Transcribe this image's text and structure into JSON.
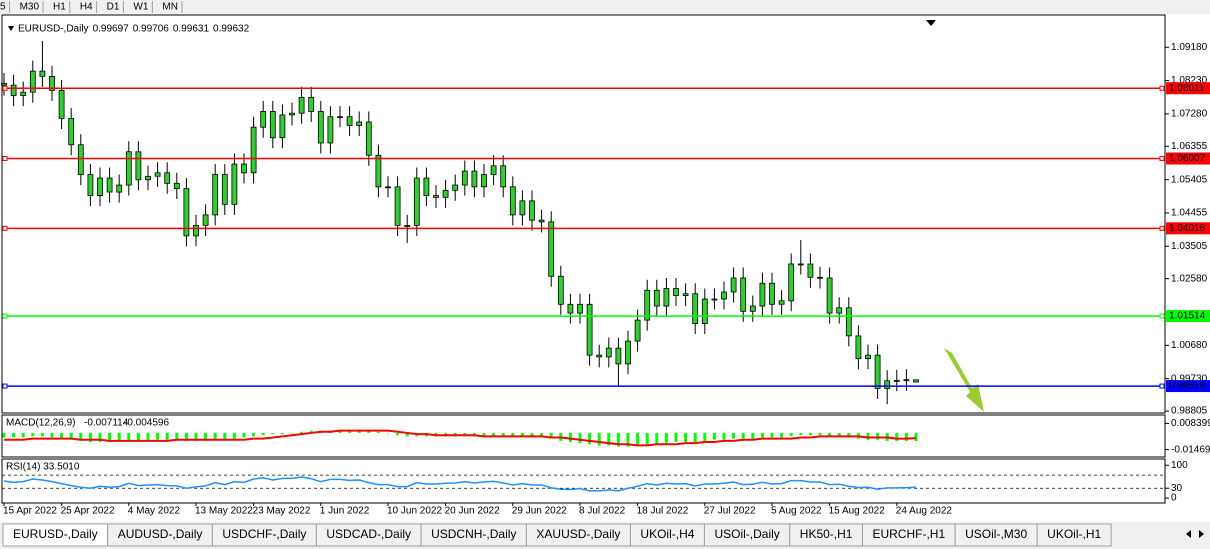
{
  "toolbar": [
    "5",
    "M30",
    "H1",
    "H4",
    "D1",
    "W1",
    "MN"
  ],
  "tabs": [
    "EURUSD-,Daily",
    "AUDUSD-,Daily",
    "USDCHF-,Daily",
    "USDCAD-,Daily",
    "USDCNH-,Daily",
    "XAUUSD-,Daily",
    "UKOil-,H4",
    "USOil-,Daily",
    "HK50-,H1",
    "EURCHF-,H1",
    "USOil-,M30",
    "UKOil-,H1"
  ],
  "chart_data": [
    {
      "type": "candlestick",
      "title": "EURUSD-,Daily",
      "categories": [
        "15 Apr 2022",
        null,
        null,
        null,
        null,
        null,
        "25 Apr 2022",
        null,
        null,
        null,
        null,
        null,
        null,
        "4 May 2022",
        null,
        null,
        null,
        null,
        null,
        null,
        "13 May 2022",
        null,
        null,
        null,
        null,
        null,
        "23 May 2022",
        null,
        null,
        null,
        null,
        null,
        null,
        "1 Jun 2022",
        null,
        null,
        null,
        null,
        null,
        null,
        "10 Jun 2022",
        null,
        null,
        null,
        null,
        null,
        "20 Jun 2022",
        null,
        null,
        null,
        null,
        null,
        null,
        "29 Jun 2022",
        null,
        null,
        null,
        null,
        null,
        null,
        "8 Jul 2022",
        null,
        null,
        null,
        null,
        null,
        "18 Jul 2022",
        null,
        null,
        null,
        null,
        null,
        null,
        "27 Jul 2022",
        null,
        null,
        null,
        null,
        null,
        null,
        "5 Aug 2022",
        null,
        null,
        null,
        null,
        null,
        "15 Aug 2022",
        null,
        null,
        null,
        null,
        null,
        null,
        "24 Aug 2022",
        null,
        null
      ],
      "open": [
        1.0815,
        1.081,
        1.078,
        1.079,
        1.085,
        1.0835,
        1.0795,
        1.0715,
        1.064,
        1.0555,
        1.0495,
        1.0545,
        1.0505,
        1.0525,
        1.062,
        1.054,
        1.055,
        1.056,
        1.053,
        1.0515,
        1.038,
        1.041,
        1.044,
        1.0555,
        1.047,
        1.0585,
        1.056,
        1.069,
        1.0735,
        1.066,
        1.0725,
        1.073,
        1.0775,
        1.0735,
        1.0645,
        1.072,
        1.072,
        1.0695,
        1.0705,
        1.061,
        1.052,
        1.052,
        1.041,
        1.041,
        1.0545,
        1.0495,
        1.049,
        1.051,
        1.0525,
        1.0565,
        1.052,
        1.0555,
        1.058,
        1.052,
        1.044,
        1.048,
        1.0425,
        1.042,
        1.0265,
        1.0185,
        1.016,
        1.0185,
        1.004,
        1.0035,
        1.006,
        1.0015,
        1.008,
        1.014,
        1.0225,
        1.018,
        1.023,
        1.021,
        1.0215,
        1.013,
        1.02,
        1.02,
        1.022,
        1.026,
        1.0165,
        1.018,
        1.0245,
        1.0185,
        1.0195,
        1.03,
        1.03,
        1.0262,
        1.026,
        1.016,
        1.0175,
        1.0095,
        1.003,
        1.004,
        0.9945,
        0.9967,
        0.9968,
        0.99697
      ],
      "high": [
        1.0845,
        1.084,
        1.082,
        1.088,
        1.0936,
        1.0865,
        1.0825,
        1.0745,
        1.067,
        1.0585,
        1.0575,
        1.0575,
        1.0555,
        1.065,
        1.065,
        1.058,
        1.059,
        1.059,
        1.056,
        1.0545,
        1.044,
        1.047,
        1.0585,
        1.0585,
        1.0615,
        1.0615,
        1.072,
        1.0765,
        1.0765,
        1.0755,
        1.076,
        1.0805,
        1.0805,
        1.0765,
        1.075,
        1.075,
        1.075,
        1.0735,
        1.0735,
        1.064,
        1.055,
        1.055,
        1.044,
        1.0575,
        1.0575,
        1.0525,
        1.054,
        1.0555,
        1.0595,
        1.0595,
        1.0585,
        1.061,
        1.061,
        1.055,
        1.051,
        1.051,
        1.0455,
        1.045,
        1.0295,
        1.0215,
        1.0215,
        1.0215,
        1.007,
        1.009,
        1.009,
        1.011,
        1.017,
        1.0255,
        1.0255,
        1.026,
        1.026,
        1.0245,
        1.0245,
        1.023,
        1.023,
        1.025,
        1.029,
        1.029,
        1.021,
        1.0275,
        1.0275,
        1.0225,
        1.033,
        1.0368,
        1.033,
        1.0292,
        1.029,
        1.0205,
        1.0205,
        1.0125,
        1.007,
        1.007,
        0.9997,
        0.9998,
        1.0,
        0.99706
      ],
      "low": [
        1.078,
        1.075,
        1.075,
        1.076,
        1.0805,
        1.0765,
        1.0685,
        1.061,
        1.0525,
        1.0465,
        1.0465,
        1.0475,
        1.0475,
        1.0495,
        1.051,
        1.051,
        1.052,
        1.05,
        1.0485,
        1.035,
        1.035,
        1.038,
        1.041,
        1.044,
        1.044,
        1.053,
        1.053,
        1.066,
        1.063,
        1.063,
        1.0695,
        1.07,
        1.0705,
        1.0615,
        1.0615,
        1.069,
        1.0665,
        1.0665,
        1.058,
        1.049,
        1.049,
        1.038,
        1.036,
        1.038,
        1.0465,
        1.046,
        1.046,
        1.048,
        1.0495,
        1.049,
        1.049,
        1.0525,
        1.049,
        1.041,
        1.041,
        1.0395,
        1.039,
        1.0235,
        1.0155,
        1.013,
        1.013,
        1.001,
        1.0005,
        1.0005,
        0.9952,
        0.9985,
        1.005,
        1.011,
        1.015,
        1.015,
        1.018,
        1.018,
        1.01,
        1.01,
        1.017,
        1.017,
        1.019,
        1.0135,
        1.0135,
        1.015,
        1.0155,
        1.0155,
        1.0165,
        1.027,
        1.0232,
        1.023,
        1.013,
        1.013,
        1.0065,
        1.0,
        1.0,
        0.9915,
        0.99,
        0.9937,
        0.9938,
        0.99631
      ],
      "close": [
        1.081,
        1.078,
        1.079,
        1.085,
        1.0835,
        1.0795,
        1.0715,
        1.064,
        1.0555,
        1.0495,
        1.0545,
        1.0505,
        1.0525,
        1.062,
        1.054,
        1.055,
        1.056,
        1.053,
        1.0515,
        1.038,
        1.041,
        1.044,
        1.0555,
        1.047,
        1.0585,
        1.056,
        1.069,
        1.0735,
        1.066,
        1.0725,
        1.073,
        1.0775,
        1.0735,
        1.0645,
        1.072,
        1.072,
        1.0695,
        1.0705,
        1.061,
        1.052,
        1.052,
        1.041,
        1.041,
        1.0545,
        1.0495,
        1.049,
        1.051,
        1.0525,
        1.0565,
        1.052,
        1.0555,
        1.058,
        1.052,
        1.044,
        1.048,
        1.0425,
        1.042,
        1.0265,
        1.0185,
        1.016,
        1.0185,
        1.004,
        1.0035,
        1.006,
        1.0015,
        1.008,
        1.014,
        1.0225,
        1.018,
        1.023,
        1.021,
        1.0215,
        1.013,
        1.02,
        1.02,
        1.022,
        1.026,
        1.0165,
        1.018,
        1.0245,
        1.0185,
        1.0195,
        1.03,
        1.03,
        1.0262,
        1.026,
        1.016,
        1.0175,
        1.0095,
        1.003,
        1.004,
        0.9945,
        0.9967,
        0.9968,
        0.997,
        0.99632
      ],
      "up_color": "#32cd32",
      "down_color": "#32cd32",
      "ylim": [
        0.9875,
        1.101
      ],
      "yticks": [
        {
          "value": 1.0918,
          "label": "1.09180"
        },
        {
          "value": 1.0823,
          "label": "1.08230"
        },
        {
          "value": 1.0728,
          "label": "1.07280"
        },
        1.06355,
        1.05405,
        1.04455,
        1.03505,
        {
          "value": 1.0258,
          "label": "1.02580"
        },
        {
          "value": 1.0068,
          "label": "1.00680"
        },
        {
          "value": 0.9973,
          "label": "0.99730"
        },
        0.98805
      ],
      "levels": [
        {
          "value": 1.08011,
          "color": "#ff0000"
        },
        {
          "value": 1.06007,
          "color": "#ff0000"
        },
        {
          "value": 1.04016,
          "color": "#ff0000"
        },
        {
          "value": 1.01514,
          "color": "#00ff00"
        },
        {
          "value": 0.99518,
          "color": "#0000ff"
        }
      ],
      "grid": false
    },
    {
      "type": "macd",
      "title": "MACD(12,26,9)",
      "values": [
        -0.004,
        -0.004,
        -0.004,
        -0.003,
        -0.003,
        -0.004,
        -0.005,
        -0.006,
        -0.007,
        -0.008,
        -0.008,
        -0.008,
        -0.008,
        -0.007,
        -0.007,
        -0.007,
        -0.006,
        -0.006,
        -0.006,
        -0.007,
        -0.007,
        -0.007,
        -0.006,
        -0.006,
        -0.005,
        -0.004,
        -0.003,
        -0.002,
        -0.001,
        -0.001,
        0.0,
        0.001,
        0.002,
        0.002,
        0.002,
        0.003,
        0.003,
        0.003,
        0.002,
        0.001,
        0.0,
        -0.002,
        -0.003,
        -0.003,
        -0.003,
        -0.003,
        -0.003,
        -0.003,
        -0.003,
        -0.003,
        -0.003,
        -0.003,
        -0.003,
        -0.003,
        -0.004,
        -0.004,
        -0.004,
        -0.005,
        -0.007,
        -0.008,
        -0.009,
        -0.01,
        -0.011,
        -0.011,
        -0.012,
        -0.012,
        -0.011,
        -0.01,
        -0.01,
        -0.009,
        -0.008,
        -0.008,
        -0.008,
        -0.007,
        -0.006,
        -0.006,
        -0.005,
        -0.005,
        -0.005,
        -0.004,
        -0.004,
        -0.004,
        -0.003,
        -0.002,
        -0.002,
        -0.002,
        -0.003,
        -0.003,
        -0.004,
        -0.005,
        -0.006,
        -0.006,
        -0.007,
        -0.007,
        -0.007,
        -0.007114
      ],
      "signal": [
        -0.006,
        -0.006,
        -0.006,
        -0.005,
        -0.005,
        -0.005,
        -0.005,
        -0.005,
        -0.006,
        -0.006,
        -0.006,
        -0.007,
        -0.007,
        -0.007,
        -0.007,
        -0.007,
        -0.007,
        -0.007,
        -0.006,
        -0.006,
        -0.006,
        -0.006,
        -0.006,
        -0.006,
        -0.006,
        -0.006,
        -0.005,
        -0.005,
        -0.004,
        -0.003,
        -0.002,
        -0.001,
        0.0,
        0.001,
        0.001,
        0.002,
        0.002,
        0.002,
        0.002,
        0.002,
        0.002,
        0.001,
        0.0,
        -0.001,
        -0.001,
        -0.002,
        -0.002,
        -0.002,
        -0.002,
        -0.002,
        -0.003,
        -0.003,
        -0.003,
        -0.003,
        -0.003,
        -0.003,
        -0.003,
        -0.004,
        -0.004,
        -0.005,
        -0.006,
        -0.007,
        -0.008,
        -0.009,
        -0.01,
        -0.01,
        -0.011,
        -0.011,
        -0.01,
        -0.01,
        -0.01,
        -0.009,
        -0.009,
        -0.008,
        -0.008,
        -0.007,
        -0.007,
        -0.006,
        -0.006,
        -0.005,
        -0.005,
        -0.005,
        -0.005,
        -0.004,
        -0.004,
        -0.003,
        -0.003,
        -0.003,
        -0.003,
        -0.003,
        -0.004,
        -0.004,
        -0.004,
        -0.005,
        -0.005,
        -0.004596
      ],
      "color": "#00ff00",
      "signal_color": "#ff0000",
      "ylim": [
        -0.0212,
        0.0158
      ],
      "yticks": [
        0.008399,
        -0.014693
      ]
    },
    {
      "type": "rsi",
      "title": "RSI(14) 33.5010",
      "values": [
        52,
        48,
        50,
        58,
        55,
        50,
        44,
        38,
        33,
        30,
        36,
        33,
        35,
        45,
        38,
        40,
        41,
        38,
        37,
        30,
        34,
        37,
        47,
        41,
        50,
        48,
        58,
        62,
        55,
        60,
        60,
        64,
        59,
        50,
        57,
        57,
        54,
        55,
        47,
        41,
        41,
        35,
        35,
        47,
        43,
        43,
        45,
        46,
        50,
        46,
        49,
        51,
        46,
        40,
        44,
        40,
        40,
        31,
        27,
        26,
        29,
        22,
        22,
        25,
        22,
        30,
        36,
        44,
        40,
        45,
        43,
        44,
        37,
        43,
        43,
        45,
        49,
        41,
        42,
        48,
        43,
        44,
        53,
        53,
        49,
        49,
        41,
        42,
        36,
        32,
        33,
        27,
        31,
        31,
        32,
        33.501
      ],
      "color": "#1e90ff",
      "ylim": [
        -15,
        119
      ],
      "yticks": [
        100,
        30,
        0
      ],
      "levels": [
        70,
        30
      ]
    }
  ]
}
